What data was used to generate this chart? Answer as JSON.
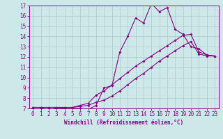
{
  "title": "",
  "xlabel": "Windchill (Refroidissement éolien,°C)",
  "bg_color": "#cce8e8",
  "grid_color": "#aacccc",
  "line_color": "#880088",
  "xlim": [
    -0.5,
    23.5
  ],
  "ylim": [
    7,
    17
  ],
  "xticks": [
    0,
    1,
    2,
    3,
    4,
    5,
    6,
    7,
    8,
    9,
    10,
    11,
    12,
    13,
    14,
    15,
    16,
    17,
    18,
    19,
    20,
    21,
    22,
    23
  ],
  "yticks": [
    7,
    8,
    9,
    10,
    11,
    12,
    13,
    14,
    15,
    16,
    17
  ],
  "line1_x": [
    0,
    1,
    2,
    3,
    4,
    5,
    6,
    7,
    8,
    9,
    10,
    11,
    12,
    13,
    14,
    15,
    16,
    17,
    18,
    19,
    20,
    21,
    22,
    23
  ],
  "line1_y": [
    7.1,
    7.1,
    6.8,
    7.1,
    7.0,
    7.0,
    7.0,
    6.9,
    7.3,
    9.0,
    9.2,
    12.5,
    14.0,
    15.8,
    15.3,
    17.2,
    16.4,
    16.8,
    14.7,
    14.2,
    13.0,
    12.8,
    12.2,
    12.1
  ],
  "line2_x": [
    0,
    1,
    2,
    3,
    4,
    5,
    6,
    7,
    8,
    9,
    10,
    11,
    12,
    13,
    14,
    15,
    16,
    17,
    18,
    19,
    20,
    21,
    22,
    23
  ],
  "line2_y": [
    7.1,
    7.1,
    7.1,
    7.1,
    7.1,
    7.1,
    7.2,
    7.3,
    7.6,
    7.8,
    8.2,
    8.7,
    9.3,
    9.9,
    10.4,
    11.0,
    11.6,
    12.1,
    12.6,
    13.1,
    13.5,
    12.3,
    12.1,
    12.1
  ],
  "line3_x": [
    0,
    1,
    2,
    3,
    4,
    5,
    6,
    7,
    8,
    9,
    10,
    11,
    12,
    13,
    14,
    15,
    16,
    17,
    18,
    19,
    20,
    21,
    22,
    23
  ],
  "line3_y": [
    7.1,
    7.1,
    7.1,
    7.1,
    7.1,
    7.1,
    7.3,
    7.5,
    8.3,
    8.7,
    9.3,
    9.9,
    10.5,
    11.1,
    11.6,
    12.1,
    12.6,
    13.1,
    13.6,
    14.1,
    14.2,
    12.5,
    12.2,
    12.1
  ],
  "tick_fontsize": 5.5,
  "xlabel_fontsize": 5.5,
  "marker_size": 2.0,
  "line_width": 0.8
}
